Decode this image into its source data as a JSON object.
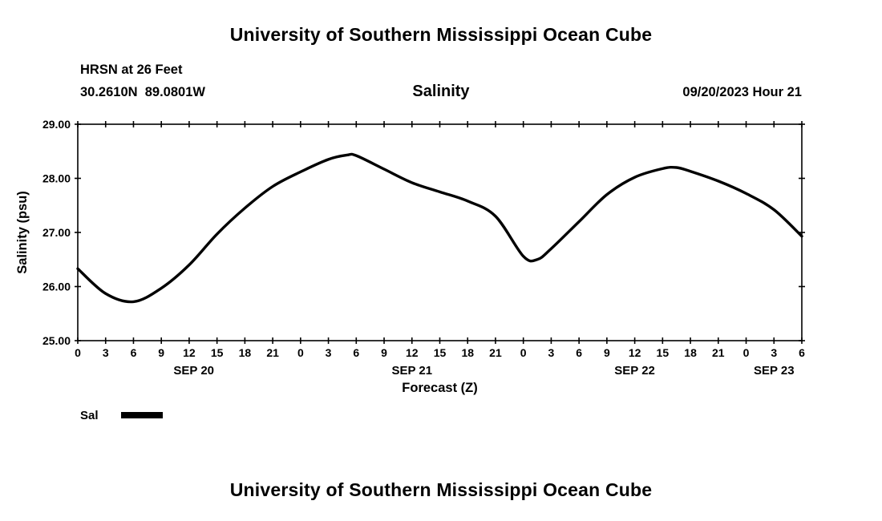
{
  "page": {
    "top_title": "University of Southern Mississippi Ocean Cube",
    "bottom_title": "University of Southern Mississippi Ocean Cube"
  },
  "header": {
    "station": "HRSN at 26 Feet",
    "coordinates": "30.2610N  89.0801W",
    "plot_title": "Salinity",
    "run_time": "09/20/2023 Hour 21"
  },
  "legend": {
    "label": "Sal"
  },
  "chart_data": {
    "type": "line",
    "title": "Salinity",
    "xlabel": "Forecast (Z)",
    "ylabel": "Salinity (psu)",
    "ylim": [
      25.0,
      29.0
    ],
    "y_ticks": [
      29.0,
      28.0,
      27.0,
      26.0,
      25.0
    ],
    "y_tick_labels": [
      "29.00",
      "28.00",
      "27.00",
      "26.00",
      "25.00"
    ],
    "x_hours_start": 0,
    "x_hours_end": 78,
    "x_tick_interval": 3,
    "x_tick_labels": [
      "0",
      "3",
      "6",
      "9",
      "12",
      "15",
      "18",
      "21",
      "0",
      "3",
      "6",
      "9",
      "12",
      "15",
      "18",
      "21",
      "0",
      "3",
      "6",
      "9",
      "12",
      "15",
      "18",
      "21",
      "0",
      "3",
      "6"
    ],
    "date_labels": [
      {
        "label": "SEP 20",
        "hour": 12.5
      },
      {
        "label": "SEP 21",
        "hour": 36
      },
      {
        "label": "SEP 22",
        "hour": 60
      },
      {
        "label": "SEP 23",
        "hour": 75
      }
    ],
    "grid": "off",
    "legend_position": "bottom-left",
    "series": [
      {
        "name": "Sal",
        "color": "#000000",
        "x": [
          0,
          3,
          6,
          9,
          12,
          15,
          18,
          21,
          24,
          27,
          29,
          30,
          33,
          36,
          39,
          42,
          45,
          48,
          49.5,
          51,
          54,
          57,
          60,
          63,
          64.5,
          66,
          69,
          72,
          75,
          78
        ],
        "values": [
          26.33,
          25.87,
          25.72,
          25.97,
          26.4,
          26.97,
          27.45,
          27.85,
          28.12,
          28.35,
          28.43,
          28.42,
          28.17,
          27.92,
          27.75,
          27.58,
          27.3,
          26.56,
          26.5,
          26.7,
          27.2,
          27.7,
          28.02,
          28.18,
          28.2,
          28.13,
          27.95,
          27.72,
          27.42,
          26.93
        ]
      }
    ]
  }
}
